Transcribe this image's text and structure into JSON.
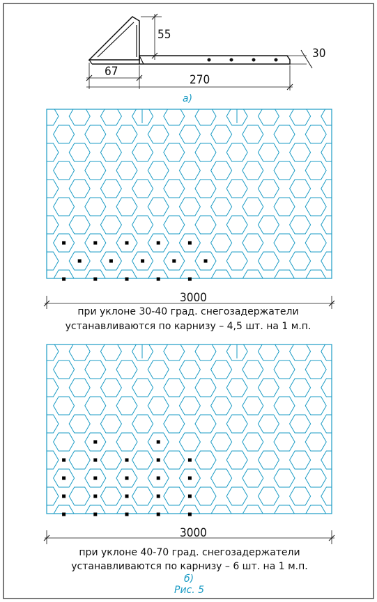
{
  "bracket_drawing": {
    "dims": {
      "height": "55",
      "thickness": "30",
      "base": "67",
      "length": "270"
    },
    "label": "а)"
  },
  "panel_a": {
    "width_label": "3000",
    "caption_line1": "при уклоне 30-40 град. снегозадержатели",
    "caption_line2": "устанавливаются по карнизу – 4,5 шт. на 1 м.п."
  },
  "panel_b": {
    "width_label": "3000",
    "caption_line1": "при уклоне 40-70 град. снегозадержатели",
    "caption_line2": "устанавливаются по карнизу – 6 шт. на 1 м.п."
  },
  "sub_label_b": "б)",
  "figure_label": "Рис. 5",
  "colors": {
    "tile_stroke": "#1a9bc4",
    "ink": "#111111",
    "marker": "#000000"
  },
  "markers": {
    "panel_a": [
      [
        1,
        7
      ],
      [
        2,
        8
      ],
      [
        1,
        9
      ],
      [
        3,
        7
      ],
      [
        4,
        8
      ],
      [
        3,
        9
      ],
      [
        5,
        7
      ],
      [
        6,
        8
      ],
      [
        5,
        9
      ],
      [
        7,
        7
      ],
      [
        8,
        8
      ],
      [
        7,
        9
      ],
      [
        9,
        7
      ],
      [
        10,
        8
      ],
      [
        9,
        9
      ]
    ],
    "panel_b": [
      [
        3,
        5
      ],
      [
        7,
        5
      ],
      [
        1,
        6
      ],
      [
        3,
        6
      ],
      [
        5,
        6
      ],
      [
        7,
        6
      ],
      [
        9,
        6
      ],
      [
        1,
        7
      ],
      [
        3,
        7
      ],
      [
        5,
        7
      ],
      [
        7,
        7
      ],
      [
        9,
        7
      ],
      [
        1,
        8
      ],
      [
        3,
        8
      ],
      [
        5,
        8
      ],
      [
        7,
        8
      ],
      [
        9,
        8
      ],
      [
        1,
        9
      ],
      [
        3,
        9
      ],
      [
        5,
        9
      ],
      [
        7,
        9
      ],
      [
        9,
        9
      ]
    ]
  }
}
